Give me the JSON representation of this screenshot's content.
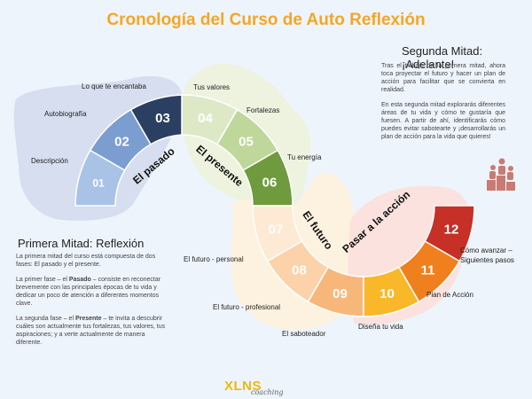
{
  "title": "Cronología del Curso de Auto Reflexión",
  "segments": [
    {
      "num": "01",
      "label": "Descripción",
      "color": "#a9c3e6"
    },
    {
      "num": "02",
      "label": "Autobiografía",
      "color": "#7b9dd0"
    },
    {
      "num": "03",
      "label": "Lo que te encantaba",
      "color": "#2b3f63"
    },
    {
      "num": "04",
      "label": "Tus valores",
      "color": "#dde9c6"
    },
    {
      "num": "05",
      "label": "Fortalezas",
      "color": "#bfd79a"
    },
    {
      "num": "06",
      "label": "Tu energía",
      "color": "#6f9a3e"
    },
    {
      "num": "07",
      "label": "El futuro - personal",
      "color": "#fde9d4"
    },
    {
      "num": "08",
      "label": "El futuro - profesional",
      "color": "#fbd2a9"
    },
    {
      "num": "09",
      "label": "El saboteador",
      "color": "#f8b77a"
    },
    {
      "num": "10",
      "label": "Diseña tu vida",
      "color": "#f9b829"
    },
    {
      "num": "11",
      "label": "Plan de Acción",
      "color": "#f07f1e"
    },
    {
      "num": "12",
      "label": "Cómo avanzar – Siguientes pasos",
      "color": "#c63026"
    }
  ],
  "phases": {
    "pasado": "El pasado",
    "presente": "El presente",
    "futuro": "El futuro",
    "accion": "Pasar a la acción"
  },
  "second_half": {
    "heading": "Segunda Mitad: ¡Adelante!",
    "p1": "Tras el trabajo de la primera mitad, ahora toca proyectar el futuro y hacer un plan de acción para facilitar que se convierta en realidad.",
    "p2": "En esta segunda mitad explorarás diferentes áreas de tu vida y cómo te gustaría que fuesen. A partir de ahí, identificarás cómo puedes evitar sabotearte y ¡desarrollarás un plan de acción para la vida que quieres!"
  },
  "first_half": {
    "heading": "Primera Mitad: Reflexión",
    "p1": "La primera mitad del curso está compuesta de dos fases: El pasado y el presente.",
    "p2_a": "La primer fase – el ",
    "p2_b": "Pasado",
    "p2_c": " – consiste en reconectar brevemente con las principales épocas de tu vida y dedicar un poco de atención a diferentes momentos clave.",
    "p3_a": "La segunda fase – el ",
    "p3_b": "Presente",
    "p3_c": " – te invita a descubrir cuáles son actualmente tus fortalezas, tus valores, tus aspiraciones; y a verte actualmente de manera diferente."
  },
  "logo": {
    "main": "XLNS",
    "sub": "coaching"
  },
  "colors": {
    "title": "#f5a623",
    "background": "#eef4fb"
  }
}
